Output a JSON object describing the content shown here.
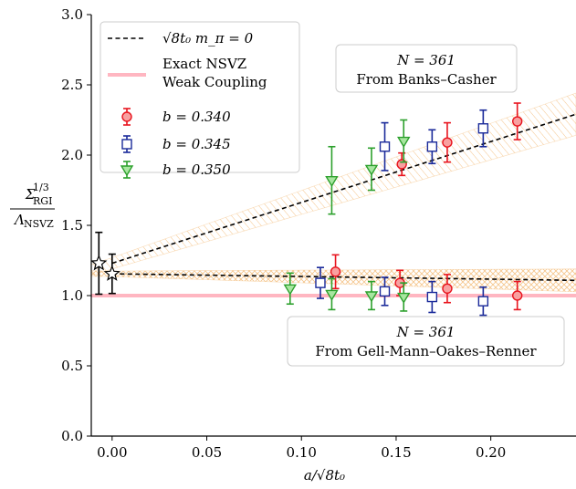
{
  "chart_data": {
    "type": "scatter",
    "xlabel": "a/√8t₀",
    "ylabel": {
      "numerator": "Σ",
      "num_sup": "1/3",
      "num_sub": "RGI",
      "denominator": "Λ",
      "den_sub": "NSVZ"
    },
    "xlim": [
      -0.011,
      0.245
    ],
    "ylim": [
      0.0,
      3.0
    ],
    "x_ticks": [
      0.0,
      0.05,
      0.1,
      0.15,
      0.2
    ],
    "x_tick_labels": [
      "0.00",
      "0.05",
      "0.10",
      "0.15",
      "0.20"
    ],
    "y_ticks": [
      0.0,
      0.5,
      1.0,
      1.5,
      2.0,
      2.5,
      3.0
    ],
    "y_tick_labels": [
      "0.0",
      "0.5",
      "1.0",
      "1.5",
      "2.0",
      "2.5",
      "3.0"
    ],
    "legend": {
      "placement": "top-left",
      "entries": [
        {
          "label": "√8t₀ m_π = 0",
          "style": "dashed-line",
          "color": "#000000"
        },
        {
          "label_line1": "Exact NSVZ",
          "label_line2": "Weak Coupling",
          "style": "band-line",
          "color": "#ffb6c1"
        },
        {
          "label": "b = 0.340",
          "marker": "circle",
          "color": "#e8141e"
        },
        {
          "label": "b = 0.345",
          "marker": "square",
          "color": "#1a2a9a"
        },
        {
          "label": "b = 0.350",
          "marker": "triangle-down",
          "color": "#2ca02c"
        }
      ]
    },
    "annotations": [
      {
        "id": "banks",
        "line1": "N = 361",
        "line2": "From Banks–Casher"
      },
      {
        "id": "gmor",
        "line1": "N = 361",
        "line2": "From Gell-Mann–Oakes–Renner"
      }
    ],
    "nsvz_weak_coupling": 1.0,
    "fits": [
      {
        "id": "banks-casher",
        "intercept": 1.23,
        "slope": 4.33,
        "band_halfwidth_at_0": 0.04,
        "band_halfwidth_slope": 0.45
      },
      {
        "id": "gmor",
        "intercept": 1.155,
        "slope": -0.19,
        "band_halfwidth_at_0": 0.02,
        "band_halfwidth_slope": 0.25
      }
    ],
    "extrapolations": [
      {
        "x": -0.007,
        "y": 1.23,
        "err": 0.22
      },
      {
        "x": 0.0,
        "y": 1.155,
        "err": 0.14
      }
    ],
    "series": [
      {
        "name": "b = 0.340",
        "marker": "circle",
        "color": "#e8141e",
        "points": [
          {
            "x": 0.153,
            "y": 1.935,
            "err": 0.08
          },
          {
            "x": 0.177,
            "y": 2.09,
            "err": 0.14
          },
          {
            "x": 0.214,
            "y": 2.24,
            "err": 0.13
          },
          {
            "x": 0.118,
            "y": 1.17,
            "err": 0.12
          },
          {
            "x": 0.152,
            "y": 1.09,
            "err": 0.09
          },
          {
            "x": 0.177,
            "y": 1.05,
            "err": 0.1
          },
          {
            "x": 0.214,
            "y": 1.0,
            "err": 0.1
          }
        ]
      },
      {
        "name": "b = 0.345",
        "marker": "square",
        "color": "#1a2a9a",
        "points": [
          {
            "x": 0.144,
            "y": 2.06,
            "err": 0.17
          },
          {
            "x": 0.169,
            "y": 2.06,
            "err": 0.12
          },
          {
            "x": 0.196,
            "y": 2.19,
            "err": 0.13
          },
          {
            "x": 0.11,
            "y": 1.09,
            "err": 0.11
          },
          {
            "x": 0.144,
            "y": 1.03,
            "err": 0.1
          },
          {
            "x": 0.169,
            "y": 0.99,
            "err": 0.11
          },
          {
            "x": 0.196,
            "y": 0.96,
            "err": 0.1
          }
        ]
      },
      {
        "name": "b = 0.350",
        "marker": "triangle-down",
        "color": "#2ca02c",
        "points": [
          {
            "x": 0.116,
            "y": 1.82,
            "err": 0.24
          },
          {
            "x": 0.137,
            "y": 1.9,
            "err": 0.15
          },
          {
            "x": 0.154,
            "y": 2.1,
            "err": 0.15
          },
          {
            "x": 0.094,
            "y": 1.05,
            "err": 0.11
          },
          {
            "x": 0.116,
            "y": 1.01,
            "err": 0.11
          },
          {
            "x": 0.137,
            "y": 1.0,
            "err": 0.1
          },
          {
            "x": 0.154,
            "y": 0.99,
            "err": 0.1
          }
        ]
      }
    ]
  }
}
